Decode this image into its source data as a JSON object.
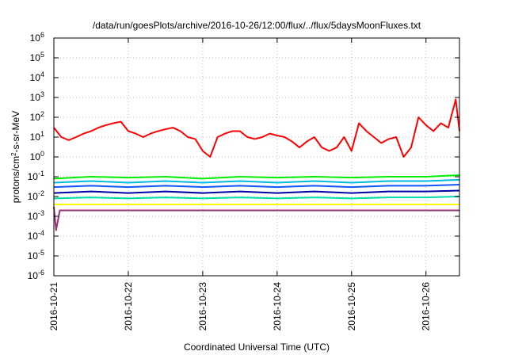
{
  "chart_data": {
    "type": "line",
    "title": "/data/run/goesPlots/archive/2016-10-26/12:00/flux/../flux/5daysMoonFluxes.txt",
    "xlabel": "Coordinated Universal Time (UTC)",
    "ylabel": {
      "prefix": "protons/cm",
      "sup": "2",
      "suffix": "-s-sr-MeV"
    },
    "log_scale_y": true,
    "grid": true,
    "xlim": [
      0,
      5.45
    ],
    "ylim_exponent": [
      -6,
      6
    ],
    "x_unit": "days since 2016-10-21 00:00 UTC",
    "x_ticks": [
      {
        "x": 0,
        "label": "2016-10-21"
      },
      {
        "x": 1,
        "label": "2016-10-22"
      },
      {
        "x": 2,
        "label": "2016-10-23"
      },
      {
        "x": 3,
        "label": "2016-10-24"
      },
      {
        "x": 4,
        "label": "2016-10-25"
      },
      {
        "x": 5,
        "label": "2016-10-26"
      }
    ],
    "y_ticks": [
      {
        "exp": -6,
        "label": "10",
        "sup": "-6"
      },
      {
        "exp": -5,
        "label": "10",
        "sup": "-5"
      },
      {
        "exp": -4,
        "label": "10",
        "sup": "-4"
      },
      {
        "exp": -3,
        "label": "10",
        "sup": "-3"
      },
      {
        "exp": -2,
        "label": "10",
        "sup": "-2"
      },
      {
        "exp": -1,
        "label": "10",
        "sup": "-1"
      },
      {
        "exp": 0,
        "label": "10",
        "sup": "0"
      },
      {
        "exp": 1,
        "label": "10",
        "sup": "1"
      },
      {
        "exp": 2,
        "label": "10",
        "sup": "2"
      },
      {
        "exp": 3,
        "label": "10",
        "sup": "3"
      },
      {
        "exp": 4,
        "label": "10",
        "sup": "4"
      },
      {
        "exp": 5,
        "label": "10",
        "sup": "5"
      },
      {
        "exp": 6,
        "label": "10",
        "sup": "6"
      }
    ],
    "series": [
      {
        "color": "#ff0000",
        "x": [
          0,
          0.1,
          0.2,
          0.3,
          0.4,
          0.5,
          0.6,
          0.7,
          0.8,
          0.9,
          1.0,
          1.1,
          1.2,
          1.3,
          1.4,
          1.5,
          1.6,
          1.7,
          1.8,
          1.9,
          2.0,
          2.1,
          2.2,
          2.3,
          2.4,
          2.5,
          2.6,
          2.7,
          2.8,
          2.9,
          3.0,
          3.1,
          3.2,
          3.3,
          3.4,
          3.5,
          3.6,
          3.7,
          3.8,
          3.9,
          4.0,
          4.1,
          4.2,
          4.3,
          4.4,
          4.5,
          4.6,
          4.7,
          4.8,
          4.9,
          5.0,
          5.1,
          5.2,
          5.3,
          5.4,
          5.45
        ],
        "y": [
          30,
          10,
          7,
          10,
          15,
          20,
          30,
          40,
          50,
          60,
          20,
          15,
          10,
          15,
          20,
          25,
          30,
          20,
          10,
          8,
          2,
          1,
          10,
          15,
          20,
          20,
          10,
          8,
          10,
          15,
          12,
          10,
          6,
          3,
          6,
          10,
          3,
          2,
          3,
          10,
          2,
          50,
          20,
          10,
          5,
          8,
          10,
          1,
          3,
          100,
          40,
          20,
          50,
          30,
          800,
          20
        ]
      },
      {
        "color": "#00ee00",
        "x": [
          0,
          0.5,
          1.0,
          1.5,
          2.0,
          2.5,
          3.0,
          3.5,
          4.0,
          4.5,
          5.0,
          5.45
        ],
        "y": [
          0.08,
          0.1,
          0.09,
          0.1,
          0.08,
          0.1,
          0.09,
          0.1,
          0.09,
          0.1,
          0.1,
          0.12
        ]
      },
      {
        "color": "#00bbdd",
        "x": [
          0,
          0.5,
          1.0,
          1.5,
          2.0,
          2.5,
          3.0,
          3.5,
          4.0,
          4.5,
          5.0,
          5.45
        ],
        "y": [
          0.05,
          0.06,
          0.05,
          0.06,
          0.05,
          0.06,
          0.05,
          0.06,
          0.05,
          0.06,
          0.06,
          0.07
        ]
      },
      {
        "color": "#1155ff",
        "x": [
          0,
          0.5,
          1.0,
          1.5,
          2.0,
          2.5,
          3.0,
          3.5,
          4.0,
          4.5,
          5.0,
          5.45
        ],
        "y": [
          0.03,
          0.035,
          0.03,
          0.035,
          0.03,
          0.035,
          0.03,
          0.035,
          0.03,
          0.035,
          0.035,
          0.04
        ]
      },
      {
        "color": "#0000aa",
        "x": [
          0,
          0.5,
          1.0,
          1.5,
          2.0,
          2.5,
          3.0,
          3.5,
          4.0,
          4.5,
          5.0,
          5.45
        ],
        "y": [
          0.015,
          0.018,
          0.015,
          0.018,
          0.015,
          0.018,
          0.015,
          0.018,
          0.015,
          0.018,
          0.018,
          0.02
        ]
      },
      {
        "color": "#00ddaa",
        "x": [
          0,
          0.5,
          1.0,
          1.5,
          2.0,
          2.5,
          3.0,
          3.5,
          4.0,
          4.5,
          5.0,
          5.45
        ],
        "y": [
          0.008,
          0.009,
          0.008,
          0.009,
          0.008,
          0.009,
          0.008,
          0.009,
          0.008,
          0.009,
          0.009,
          0.01
        ]
      },
      {
        "color": "#ffff00",
        "x": [
          0,
          0.5,
          1.0,
          1.5,
          2.0,
          2.5,
          3.0,
          3.5,
          4.0,
          4.5,
          5.0,
          5.45
        ],
        "y": [
          0.004,
          0.004,
          0.004,
          0.004,
          0.004,
          0.004,
          0.004,
          0.004,
          0.004,
          0.004,
          0.004,
          0.004
        ]
      },
      {
        "color": "#993377",
        "x": [
          0,
          0.03,
          0.08,
          0.5,
          1.0,
          1.5,
          2.0,
          2.5,
          3.0,
          3.5,
          4.0,
          4.5,
          5.0,
          5.45
        ],
        "y": [
          0.003,
          0.0002,
          0.002,
          0.002,
          0.002,
          0.002,
          0.002,
          0.002,
          0.002,
          0.002,
          0.002,
          0.002,
          0.002,
          0.002
        ]
      }
    ]
  }
}
